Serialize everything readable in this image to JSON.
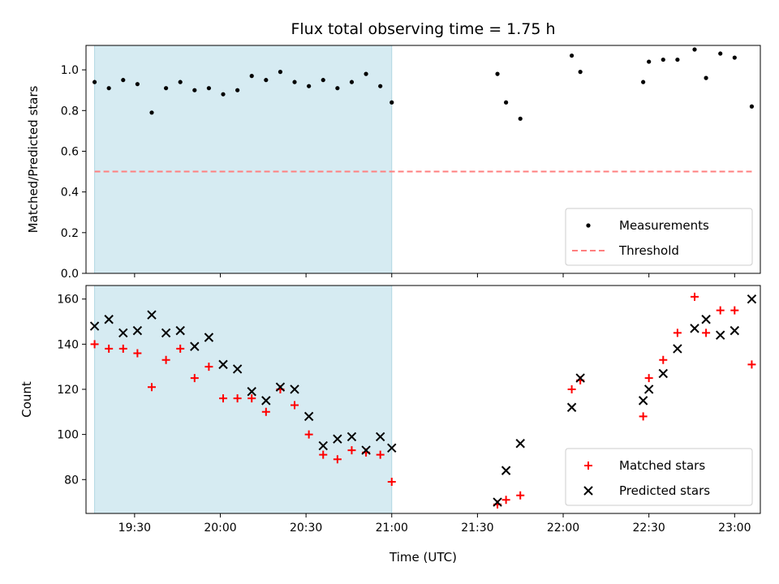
{
  "chart_data": [
    {
      "type": "scatter",
      "title": "Flux total observing time = 1.75 h",
      "xlabel": "",
      "ylabel": "Matched/Predicted stars",
      "xlim": [
        "19:13",
        "23:09"
      ],
      "ylim": [
        0,
        1.12
      ],
      "yticks": [
        0.0,
        0.2,
        0.4,
        0.6,
        0.8,
        1.0
      ],
      "ytick_labels": [
        "0.0",
        "0.2",
        "0.4",
        "0.6",
        "0.8",
        "1.0"
      ],
      "shaded_span": {
        "from": "19:16",
        "to": "21:00",
        "color": "#add8e6"
      },
      "legend": {
        "placement": "lower-right",
        "entries": [
          "Measurements",
          "Threshold"
        ]
      },
      "series": [
        {
          "name": "Measurements",
          "kind": "dot",
          "color": "#000000",
          "x": [
            "19:16",
            "19:21",
            "19:26",
            "19:31",
            "19:36",
            "19:41",
            "19:46",
            "19:51",
            "19:56",
            "20:01",
            "20:06",
            "20:11",
            "20:16",
            "20:21",
            "20:26",
            "20:31",
            "20:36",
            "20:41",
            "20:46",
            "20:51",
            "20:56",
            "21:00",
            "21:37",
            "21:40",
            "21:45",
            "22:03",
            "22:06",
            "22:28",
            "22:30",
            "22:35",
            "22:40",
            "22:46",
            "22:50",
            "22:55",
            "23:00",
            "23:06"
          ],
          "y": [
            0.94,
            0.91,
            0.95,
            0.93,
            0.79,
            0.91,
            0.94,
            0.9,
            0.91,
            0.88,
            0.9,
            0.97,
            0.95,
            0.99,
            0.94,
            0.92,
            0.95,
            0.91,
            0.94,
            0.98,
            0.92,
            0.84,
            0.98,
            0.84,
            0.76,
            1.07,
            0.99,
            0.94,
            1.04,
            1.05,
            1.05,
            1.1,
            0.96,
            1.08,
            1.06,
            0.82
          ]
        },
        {
          "name": "Threshold",
          "kind": "dashed-line",
          "color": "#ff7f7f",
          "x": [
            "19:16",
            "23:06"
          ],
          "y": [
            0.5,
            0.5
          ]
        }
      ]
    },
    {
      "type": "scatter",
      "title": "",
      "xlabel": "Time (UTC)",
      "ylabel": "Count",
      "xlim": [
        "19:13",
        "23:09"
      ],
      "ylim": [
        65,
        166
      ],
      "xticks": [
        "19:30",
        "20:00",
        "20:30",
        "21:00",
        "21:30",
        "22:00",
        "22:30",
        "23:00"
      ],
      "yticks": [
        80,
        100,
        120,
        140,
        160
      ],
      "ytick_labels": [
        "80",
        "100",
        "120",
        "140",
        "160"
      ],
      "shaded_span": {
        "from": "19:16",
        "to": "21:00",
        "color": "#add8e6"
      },
      "legend": {
        "placement": "lower-right",
        "entries": [
          "Matched stars",
          "Predicted stars"
        ]
      },
      "series": [
        {
          "name": "Matched stars",
          "kind": "plus",
          "color": "#ff0000",
          "x": [
            "19:16",
            "19:21",
            "19:26",
            "19:31",
            "19:36",
            "19:41",
            "19:46",
            "19:51",
            "19:56",
            "20:01",
            "20:06",
            "20:11",
            "20:16",
            "20:21",
            "20:26",
            "20:31",
            "20:36",
            "20:41",
            "20:46",
            "20:51",
            "20:56",
            "21:00",
            "21:37",
            "21:40",
            "21:45",
            "22:03",
            "22:06",
            "22:28",
            "22:30",
            "22:35",
            "22:40",
            "22:46",
            "22:50",
            "22:55",
            "23:00",
            "23:06"
          ],
          "y": [
            140,
            138,
            138,
            136,
            121,
            133,
            138,
            125,
            130,
            116,
            116,
            116,
            110,
            120,
            113,
            100,
            91,
            89,
            93,
            92,
            91,
            79,
            69,
            71,
            73,
            120,
            124,
            108,
            125,
            133,
            145,
            161,
            145,
            155,
            155,
            131
          ]
        },
        {
          "name": "Predicted stars",
          "kind": "x",
          "color": "#000000",
          "x": [
            "19:16",
            "19:21",
            "19:26",
            "19:31",
            "19:36",
            "19:41",
            "19:46",
            "19:51",
            "19:56",
            "20:01",
            "20:06",
            "20:11",
            "20:16",
            "20:21",
            "20:26",
            "20:31",
            "20:36",
            "20:41",
            "20:46",
            "20:51",
            "20:56",
            "21:00",
            "21:37",
            "21:40",
            "21:45",
            "22:03",
            "22:06",
            "22:28",
            "22:30",
            "22:35",
            "22:40",
            "22:46",
            "22:50",
            "22:55",
            "23:00",
            "23:06"
          ],
          "y": [
            148,
            151,
            145,
            146,
            153,
            145,
            146,
            139,
            143,
            131,
            129,
            119,
            115,
            121,
            120,
            108,
            95,
            98,
            99,
            93,
            99,
            94,
            70,
            84,
            96,
            112,
            125,
            115,
            120,
            127,
            138,
            147,
            151,
            144,
            146,
            160
          ]
        }
      ]
    }
  ]
}
